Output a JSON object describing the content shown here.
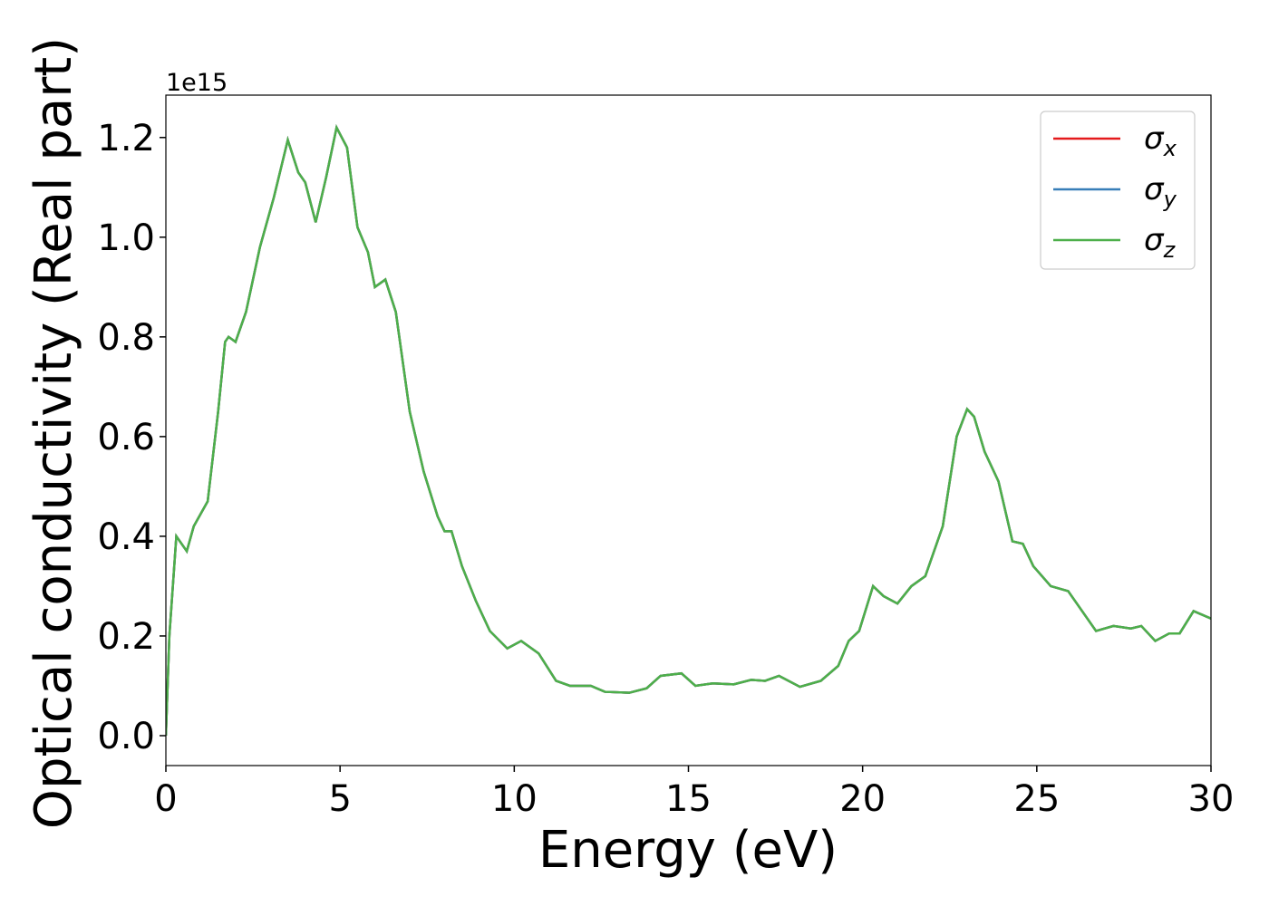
{
  "chart_data": {
    "type": "line",
    "xlabel": "Energy (eV)",
    "ylabel": "Optical conductivity (Real part)",
    "y_offset_label": "1e15",
    "x": [
      0,
      0.1,
      0.3,
      0.6,
      0.8,
      1.2,
      1.5,
      1.7,
      1.8,
      2.0,
      2.3,
      2.7,
      3.1,
      3.5,
      3.8,
      4.0,
      4.3,
      4.6,
      4.9,
      5.2,
      5.5,
      5.8,
      6.0,
      6.3,
      6.6,
      7.0,
      7.4,
      7.8,
      8.0,
      8.2,
      8.5,
      8.9,
      9.3,
      9.8,
      10.2,
      10.7,
      11.2,
      11.6,
      12.2,
      12.6,
      13.3,
      13.8,
      14.2,
      14.8,
      15.2,
      15.7,
      16.3,
      16.8,
      17.2,
      17.6,
      18.2,
      18.8,
      19.3,
      19.6,
      19.9,
      20.3,
      20.6,
      21.0,
      21.4,
      21.8,
      22.3,
      22.7,
      23.0,
      23.2,
      23.5,
      23.9,
      24.3,
      24.6,
      24.9,
      25.4,
      25.9,
      26.3,
      26.7,
      27.2,
      27.7,
      28.0,
      28.4,
      28.8,
      29.1,
      29.5,
      30.0
    ],
    "series": [
      {
        "name": "σx",
        "color": "#e41a1c",
        "values": [
          0.0,
          0.2,
          0.4,
          0.37,
          0.42,
          0.47,
          0.65,
          0.79,
          0.8,
          0.79,
          0.85,
          0.98,
          1.08,
          1.195,
          1.13,
          1.11,
          1.03,
          1.12,
          1.22,
          1.18,
          1.02,
          0.97,
          0.9,
          0.915,
          0.85,
          0.65,
          0.53,
          0.44,
          0.41,
          0.41,
          0.34,
          0.27,
          0.21,
          0.175,
          0.19,
          0.165,
          0.11,
          0.1,
          0.1,
          0.088,
          0.086,
          0.095,
          0.12,
          0.125,
          0.1,
          0.105,
          0.103,
          0.112,
          0.11,
          0.12,
          0.098,
          0.11,
          0.14,
          0.19,
          0.21,
          0.3,
          0.28,
          0.265,
          0.3,
          0.32,
          0.42,
          0.6,
          0.655,
          0.64,
          0.57,
          0.51,
          0.39,
          0.385,
          0.34,
          0.3,
          0.29,
          0.25,
          0.21,
          0.22,
          0.215,
          0.22,
          0.19,
          0.205,
          0.205,
          0.25,
          0.235
        ]
      },
      {
        "name": "σy",
        "color": "#377eb8",
        "values": [
          0.0,
          0.2,
          0.4,
          0.37,
          0.42,
          0.47,
          0.65,
          0.79,
          0.8,
          0.79,
          0.85,
          0.98,
          1.08,
          1.195,
          1.13,
          1.11,
          1.03,
          1.12,
          1.22,
          1.18,
          1.02,
          0.97,
          0.9,
          0.915,
          0.85,
          0.65,
          0.53,
          0.44,
          0.41,
          0.41,
          0.34,
          0.27,
          0.21,
          0.175,
          0.19,
          0.165,
          0.11,
          0.1,
          0.1,
          0.088,
          0.086,
          0.095,
          0.12,
          0.125,
          0.1,
          0.105,
          0.103,
          0.112,
          0.11,
          0.12,
          0.098,
          0.11,
          0.14,
          0.19,
          0.21,
          0.3,
          0.28,
          0.265,
          0.3,
          0.32,
          0.42,
          0.6,
          0.655,
          0.64,
          0.57,
          0.51,
          0.39,
          0.385,
          0.34,
          0.3,
          0.29,
          0.25,
          0.21,
          0.22,
          0.215,
          0.22,
          0.19,
          0.205,
          0.205,
          0.25,
          0.235
        ]
      },
      {
        "name": "σz",
        "color": "#4daf4a",
        "values": [
          0.0,
          0.2,
          0.4,
          0.37,
          0.42,
          0.47,
          0.65,
          0.79,
          0.8,
          0.79,
          0.85,
          0.98,
          1.08,
          1.195,
          1.13,
          1.11,
          1.03,
          1.12,
          1.22,
          1.18,
          1.02,
          0.97,
          0.9,
          0.915,
          0.85,
          0.65,
          0.53,
          0.44,
          0.41,
          0.41,
          0.34,
          0.27,
          0.21,
          0.175,
          0.19,
          0.165,
          0.11,
          0.1,
          0.1,
          0.088,
          0.086,
          0.095,
          0.12,
          0.125,
          0.1,
          0.105,
          0.103,
          0.112,
          0.11,
          0.12,
          0.098,
          0.11,
          0.14,
          0.19,
          0.21,
          0.3,
          0.28,
          0.265,
          0.3,
          0.32,
          0.42,
          0.6,
          0.655,
          0.64,
          0.57,
          0.51,
          0.39,
          0.385,
          0.34,
          0.3,
          0.29,
          0.25,
          0.21,
          0.22,
          0.215,
          0.22,
          0.19,
          0.205,
          0.205,
          0.25,
          0.235
        ]
      }
    ],
    "xlim": [
      0,
      30
    ],
    "xticks": [
      0,
      5,
      10,
      15,
      20,
      25,
      30
    ],
    "ylim": [
      -0.06,
      1.285
    ],
    "yticks": [
      {
        "value": 0,
        "label": "0.0"
      },
      0.2,
      0.4,
      0.6,
      0.8,
      {
        "value": 1,
        "label": "1.0"
      },
      1.2
    ],
    "grid": false,
    "legend": "upper right"
  }
}
